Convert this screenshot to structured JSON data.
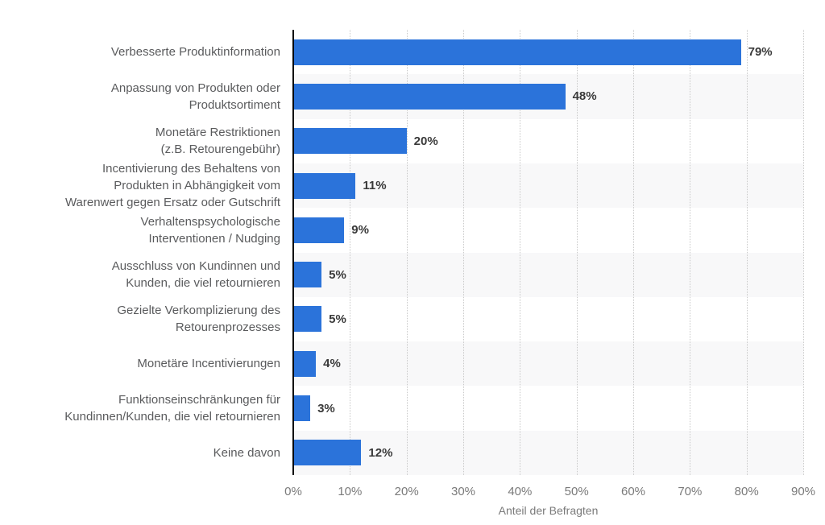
{
  "chart_data": {
    "type": "bar",
    "orientation": "horizontal",
    "title": "",
    "categories": [
      "Verbesserte Produktinformation",
      "Anpassung von Produkten oder\nProduktsortiment",
      "Monetäre Restriktionen\n(z.B. Retourengebühr)",
      "Incentivierung des Behaltens von\nProdukten in Abhängigkeit vom\nWarenwert gegen Ersatz oder Gutschrift",
      "Verhaltenspsychologische\nInterventionen / Nudging",
      "Ausschluss von Kundinnen und\nKunden, die viel retournieren",
      "Gezielte Verkomplizierung des\nRetourenprozesses",
      "Monetäre Incentivierungen",
      "Funktionseinschränkungen für\nKundinnen/Kunden, die viel retournieren",
      "Keine davon"
    ],
    "values": [
      79,
      48,
      20,
      11,
      9,
      5,
      5,
      4,
      3,
      12
    ],
    "value_labels": [
      "79%",
      "48%",
      "20%",
      "11%",
      "9%",
      "5%",
      "5%",
      "4%",
      "3%",
      "12%"
    ],
    "xlabel": "Anteil der Befragten",
    "x_ticks": [
      "0%",
      "10%",
      "20%",
      "30%",
      "40%",
      "50%",
      "60%",
      "70%",
      "80%",
      "90%"
    ],
    "xlim": [
      0,
      90
    ],
    "grid": "vertical-dotted",
    "legend": "none",
    "colors": {
      "bar": "#2b73da",
      "row_stripe": "#f8f8f9",
      "gridline": "#c9c9c9",
      "axis_line": "#000000",
      "category_label": "#5a5b5d",
      "value_label": "#3a3a3a",
      "tick_label": "#7a7a7a",
      "axis_title": "#7a7a7a"
    }
  }
}
